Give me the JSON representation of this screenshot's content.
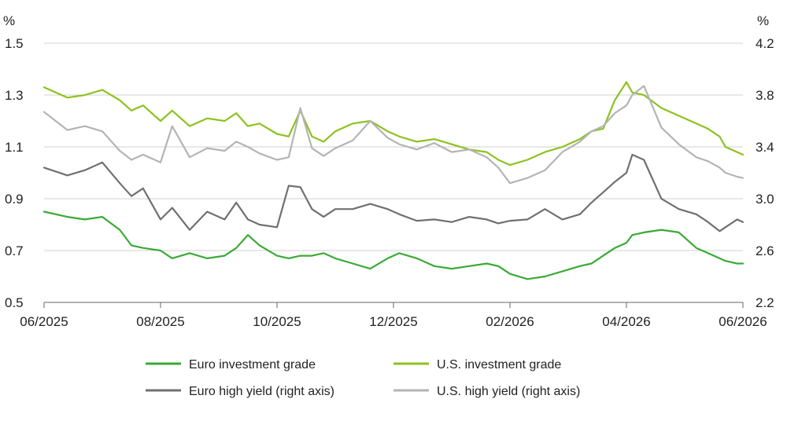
{
  "chart_data": {
    "type": "line",
    "left_axis": {
      "unit": "%",
      "range": [
        0.5,
        1.5
      ],
      "ticks": [
        "1.5",
        "1.3",
        "1.1",
        "0.9",
        "0.7",
        "0.5"
      ],
      "tick_values": [
        1.5,
        1.3,
        1.1,
        0.9,
        0.7,
        0.5
      ]
    },
    "right_axis": {
      "unit": "%",
      "range": [
        2.2,
        4.2
      ],
      "ticks": [
        "4.2",
        "3.8",
        "3.4",
        "3.0",
        "2.6",
        "2.2"
      ],
      "tick_values": [
        4.2,
        3.8,
        3.4,
        3.0,
        2.6,
        2.2
      ]
    },
    "x_axis": {
      "range": [
        "2025-06",
        "2026-06"
      ],
      "ticks": [
        "06/2025",
        "08/2025",
        "10/2025",
        "12/2025",
        "02/2026",
        "04/2026",
        "06/2026"
      ],
      "tick_positions": [
        0,
        2,
        4,
        6,
        8,
        10,
        12
      ]
    },
    "grid": "horizontal",
    "legend_position": "bottom",
    "series": [
      {
        "name": "Euro investment grade",
        "axis": "left",
        "color": "#3aaa35",
        "x": [
          0,
          0.4,
          0.7,
          1.0,
          1.3,
          1.5,
          1.7,
          2.0,
          2.2,
          2.5,
          2.8,
          3.1,
          3.3,
          3.5,
          3.7,
          4.0,
          4.2,
          4.4,
          4.6,
          4.8,
          5.0,
          5.3,
          5.6,
          5.9,
          6.1,
          6.4,
          6.7,
          7.0,
          7.3,
          7.6,
          7.8,
          8.0,
          8.3,
          8.6,
          8.9,
          9.2,
          9.4,
          9.6,
          9.8,
          10.0,
          10.1,
          10.3,
          10.6,
          10.9,
          11.2,
          11.4,
          11.6,
          11.7,
          11.9,
          12.0
        ],
        "values": [
          0.85,
          0.83,
          0.82,
          0.83,
          0.78,
          0.72,
          0.71,
          0.7,
          0.67,
          0.69,
          0.67,
          0.68,
          0.71,
          0.76,
          0.72,
          0.68,
          0.67,
          0.68,
          0.68,
          0.69,
          0.67,
          0.65,
          0.63,
          0.67,
          0.69,
          0.67,
          0.64,
          0.63,
          0.64,
          0.65,
          0.64,
          0.61,
          0.59,
          0.6,
          0.62,
          0.64,
          0.65,
          0.68,
          0.71,
          0.73,
          0.76,
          0.77,
          0.78,
          0.77,
          0.71,
          0.69,
          0.67,
          0.66,
          0.65,
          0.65
        ]
      },
      {
        "name": "U.S. investment grade",
        "axis": "left",
        "color": "#8dc21f",
        "x": [
          0,
          0.4,
          0.7,
          1.0,
          1.3,
          1.5,
          1.7,
          2.0,
          2.2,
          2.5,
          2.8,
          3.1,
          3.3,
          3.5,
          3.7,
          4.0,
          4.2,
          4.4,
          4.6,
          4.8,
          5.0,
          5.3,
          5.6,
          5.9,
          6.1,
          6.4,
          6.7,
          7.0,
          7.3,
          7.6,
          7.8,
          8.0,
          8.3,
          8.6,
          8.9,
          9.2,
          9.4,
          9.6,
          9.8,
          10.0,
          10.1,
          10.3,
          10.6,
          10.9,
          11.2,
          11.4,
          11.6,
          11.7,
          11.9,
          12.0
        ],
        "values": [
          1.33,
          1.29,
          1.3,
          1.32,
          1.28,
          1.24,
          1.26,
          1.2,
          1.24,
          1.18,
          1.21,
          1.2,
          1.23,
          1.18,
          1.19,
          1.15,
          1.14,
          1.24,
          1.14,
          1.12,
          1.16,
          1.19,
          1.2,
          1.16,
          1.14,
          1.12,
          1.13,
          1.11,
          1.09,
          1.08,
          1.05,
          1.03,
          1.05,
          1.08,
          1.1,
          1.13,
          1.16,
          1.17,
          1.28,
          1.35,
          1.31,
          1.3,
          1.25,
          1.22,
          1.19,
          1.17,
          1.14,
          1.1,
          1.08,
          1.07
        ]
      },
      {
        "name": "Euro high yield (right axis)",
        "axis": "right",
        "color": "#707070",
        "x": [
          0,
          0.4,
          0.7,
          1.0,
          1.3,
          1.5,
          1.7,
          2.0,
          2.2,
          2.5,
          2.8,
          3.1,
          3.3,
          3.5,
          3.7,
          4.0,
          4.2,
          4.4,
          4.6,
          4.8,
          5.0,
          5.3,
          5.6,
          5.9,
          6.1,
          6.4,
          6.7,
          7.0,
          7.3,
          7.6,
          7.8,
          8.0,
          8.3,
          8.6,
          8.9,
          9.2,
          9.4,
          9.6,
          9.8,
          10.0,
          10.1,
          10.3,
          10.6,
          10.9,
          11.2,
          11.4,
          11.6,
          11.7,
          11.9,
          12.0
        ],
        "values": [
          3.24,
          3.18,
          3.22,
          3.28,
          3.12,
          3.02,
          3.08,
          2.84,
          2.93,
          2.76,
          2.9,
          2.84,
          2.97,
          2.84,
          2.8,
          2.78,
          3.1,
          3.09,
          2.92,
          2.86,
          2.92,
          2.92,
          2.96,
          2.92,
          2.88,
          2.83,
          2.84,
          2.82,
          2.86,
          2.84,
          2.81,
          2.83,
          2.84,
          2.92,
          2.84,
          2.88,
          2.97,
          3.05,
          3.13,
          3.2,
          3.34,
          3.3,
          3.0,
          2.92,
          2.88,
          2.82,
          2.75,
          2.78,
          2.84,
          2.82
        ]
      },
      {
        "name": "U.S. high yield (right axis)",
        "axis": "right",
        "color": "#b4b4b4",
        "x": [
          0,
          0.4,
          0.7,
          1.0,
          1.3,
          1.5,
          1.7,
          2.0,
          2.2,
          2.5,
          2.8,
          3.1,
          3.3,
          3.5,
          3.7,
          4.0,
          4.2,
          4.4,
          4.6,
          4.8,
          5.0,
          5.3,
          5.6,
          5.9,
          6.1,
          6.4,
          6.7,
          7.0,
          7.3,
          7.6,
          7.8,
          8.0,
          8.3,
          8.6,
          8.9,
          9.2,
          9.4,
          9.6,
          9.8,
          10.0,
          10.1,
          10.3,
          10.6,
          10.9,
          11.2,
          11.4,
          11.6,
          11.7,
          11.9,
          12.0
        ],
        "values": [
          3.67,
          3.53,
          3.56,
          3.52,
          3.37,
          3.3,
          3.34,
          3.28,
          3.56,
          3.32,
          3.39,
          3.37,
          3.44,
          3.4,
          3.35,
          3.3,
          3.32,
          3.7,
          3.39,
          3.33,
          3.39,
          3.45,
          3.6,
          3.47,
          3.42,
          3.38,
          3.43,
          3.36,
          3.38,
          3.32,
          3.24,
          3.12,
          3.16,
          3.22,
          3.36,
          3.44,
          3.52,
          3.56,
          3.66,
          3.72,
          3.8,
          3.87,
          3.55,
          3.42,
          3.32,
          3.29,
          3.24,
          3.2,
          3.17,
          3.16
        ]
      }
    ]
  }
}
